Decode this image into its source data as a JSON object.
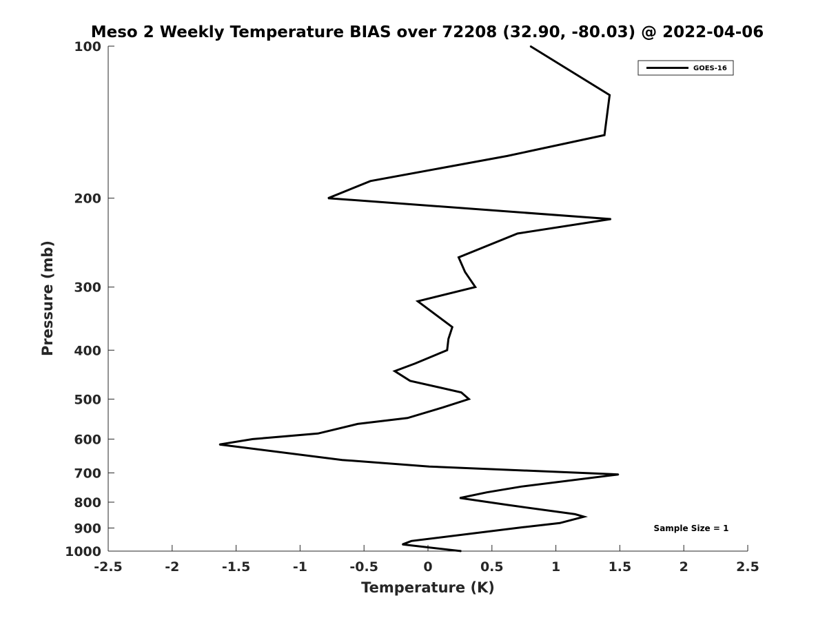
{
  "chart_data": {
    "type": "line",
    "title": "Meso 2 Weekly Temperature BIAS over 72208 (32.90, -80.03) @ 2022-04-06",
    "xlabel": "Temperature (K)",
    "ylabel": "Pressure (mb)",
    "xlim": [
      -2.5,
      2.5
    ],
    "ylim": [
      100,
      1000
    ],
    "y_scale": "log",
    "y_reversed": true,
    "grid": false,
    "legend_position": "top-right",
    "x_ticks": [
      "-2.5",
      "-2",
      "-1.5",
      "-1",
      "-0.5",
      "0",
      "0.5",
      "1",
      "1.5",
      "2",
      "2.5"
    ],
    "y_ticks": [
      "100",
      "200",
      "300",
      "400",
      "500",
      "600",
      "700",
      "800",
      "900",
      "1000"
    ],
    "annotation": "Sample Size = 1",
    "series": [
      {
        "name": "GOES-16",
        "color": "#000000",
        "points": [
          {
            "x": 0.8,
            "y": 100
          },
          {
            "x": 1.42,
            "y": 125
          },
          {
            "x": 1.38,
            "y": 150
          },
          {
            "x": 0.62,
            "y": 165
          },
          {
            "x": -0.45,
            "y": 185
          },
          {
            "x": -0.78,
            "y": 200
          },
          {
            "x": 1.43,
            "y": 220
          },
          {
            "x": 0.7,
            "y": 235
          },
          {
            "x": 0.24,
            "y": 262
          },
          {
            "x": 0.29,
            "y": 280
          },
          {
            "x": 0.37,
            "y": 300
          },
          {
            "x": -0.08,
            "y": 320
          },
          {
            "x": 0.19,
            "y": 360
          },
          {
            "x": 0.16,
            "y": 380
          },
          {
            "x": 0.15,
            "y": 400
          },
          {
            "x": -0.1,
            "y": 425
          },
          {
            "x": -0.26,
            "y": 440
          },
          {
            "x": -0.14,
            "y": 460
          },
          {
            "x": 0.26,
            "y": 485
          },
          {
            "x": 0.32,
            "y": 500
          },
          {
            "x": 0.11,
            "y": 520
          },
          {
            "x": -0.16,
            "y": 545
          },
          {
            "x": -0.55,
            "y": 560
          },
          {
            "x": -0.86,
            "y": 585
          },
          {
            "x": -1.37,
            "y": 600
          },
          {
            "x": -1.63,
            "y": 615
          },
          {
            "x": -0.67,
            "y": 660
          },
          {
            "x": 0.01,
            "y": 680
          },
          {
            "x": 1.49,
            "y": 705
          },
          {
            "x": 0.73,
            "y": 745
          },
          {
            "x": 0.46,
            "y": 765
          },
          {
            "x": 0.25,
            "y": 785
          },
          {
            "x": 0.62,
            "y": 810
          },
          {
            "x": 1.15,
            "y": 845
          },
          {
            "x": 1.22,
            "y": 855
          },
          {
            "x": 1.03,
            "y": 880
          },
          {
            "x": 0.74,
            "y": 897
          },
          {
            "x": -0.13,
            "y": 955
          },
          {
            "x": -0.2,
            "y": 970
          },
          {
            "x": 0.26,
            "y": 1000
          }
        ]
      }
    ]
  }
}
